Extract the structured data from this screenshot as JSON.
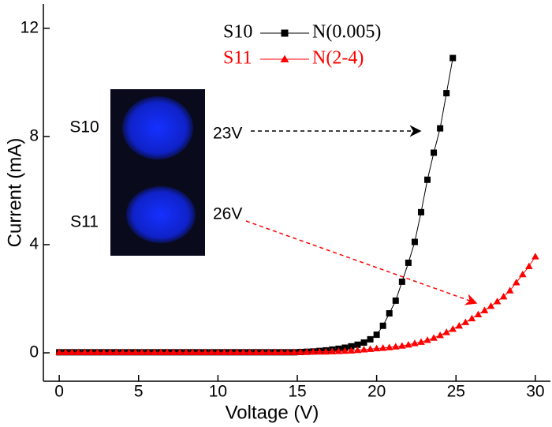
{
  "chart_data": {
    "type": "line",
    "x_label": "Voltage (V)",
    "y_label": "Current (mA)",
    "x": [
      0,
      0.4,
      0.8,
      1.2,
      1.6,
      2,
      2.4,
      2.8,
      3.2,
      3.6,
      4,
      4.4,
      4.8,
      5.2,
      5.6,
      6,
      6.4,
      6.8,
      7.2,
      7.6,
      8,
      8.4,
      8.8,
      9.2,
      9.6,
      10,
      10.4,
      10.8,
      11.2,
      11.6,
      12,
      12.4,
      12.8,
      13.2,
      13.6,
      14,
      14.4,
      14.8,
      15.2,
      15.6,
      16,
      16.4,
      16.8,
      17.2,
      17.6,
      18,
      18.4,
      18.8,
      19.2,
      19.6,
      20,
      20.4,
      20.8,
      21.2,
      21.6,
      22,
      22.4,
      22.8,
      23.2,
      23.6,
      24,
      24.4,
      24.8,
      25.2,
      25.6,
      26,
      26.4,
      26.8,
      27.2,
      27.6,
      28,
      28.4,
      28.8,
      29.2,
      29.6,
      30
    ],
    "series": [
      {
        "name": "S10",
        "sample": "N(0.005)",
        "color": "#000000",
        "marker": "square",
        "values": [
          0.02,
          0.02,
          0.02,
          0.02,
          0.02,
          0.02,
          0.02,
          0.02,
          0.02,
          0.02,
          0.02,
          0.02,
          0.02,
          0.02,
          0.02,
          0.02,
          0.02,
          0.02,
          0.02,
          0.02,
          0.02,
          0.02,
          0.02,
          0.02,
          0.02,
          0.02,
          0.02,
          0.02,
          0.02,
          0.02,
          0.02,
          0.02,
          0.02,
          0.02,
          0.02,
          0.02,
          0.02,
          0.02,
          0.03,
          0.04,
          0.05,
          0.07,
          0.09,
          0.12,
          0.15,
          0.19,
          0.24,
          0.3,
          0.38,
          0.5,
          0.67,
          1.0,
          1.46,
          1.93,
          2.63,
          3.33,
          4.1,
          5.2,
          6.4,
          7.4,
          8.3,
          9.6,
          10.9,
          null,
          null,
          null,
          null,
          null,
          null,
          null,
          null,
          null,
          null,
          null,
          null,
          null
        ]
      },
      {
        "name": "S11",
        "sample": "N(2-4)",
        "color": "#ff0000",
        "marker": "triangle",
        "values": [
          0.02,
          0.02,
          0.02,
          0.02,
          0.02,
          0.02,
          0.02,
          0.02,
          0.02,
          0.02,
          0.02,
          0.02,
          0.02,
          0.02,
          0.02,
          0.02,
          0.02,
          0.02,
          0.02,
          0.02,
          0.02,
          0.02,
          0.02,
          0.02,
          0.02,
          0.02,
          0.02,
          0.02,
          0.02,
          0.02,
          0.02,
          0.02,
          0.02,
          0.02,
          0.02,
          0.02,
          0.02,
          0.02,
          0.03,
          0.03,
          0.04,
          0.04,
          0.04,
          0.05,
          0.06,
          0.07,
          0.08,
          0.1,
          0.12,
          0.14,
          0.16,
          0.18,
          0.2,
          0.23,
          0.26,
          0.3,
          0.35,
          0.4,
          0.47,
          0.55,
          0.65,
          0.76,
          0.88,
          1.0,
          1.13,
          1.27,
          1.42,
          1.57,
          1.73,
          1.9,
          2.08,
          2.3,
          2.6,
          2.9,
          3.2,
          3.56
        ]
      }
    ],
    "xlim": [
      -1,
      30.95
    ],
    "ylim": [
      -1.05,
      12.9
    ],
    "xticks": [
      0,
      5,
      10,
      15,
      20,
      25,
      30
    ],
    "yticks": [
      0,
      4,
      8,
      12
    ],
    "annotations": [
      {
        "text": "23V",
        "color": "#000000"
      },
      {
        "text": "26V",
        "color": "#ff0000"
      }
    ],
    "inset_labels": [
      "S10",
      "S11"
    ]
  }
}
